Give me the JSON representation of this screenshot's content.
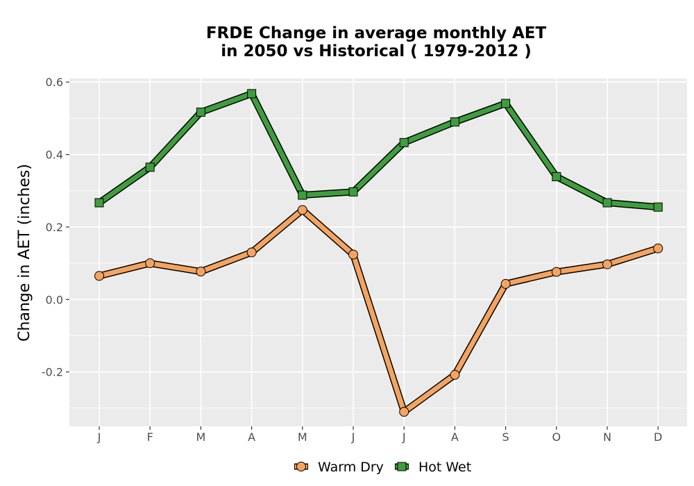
{
  "chart_data": {
    "type": "line",
    "title_line1": "FRDE  Change in average monthly AET",
    "title_line2": "in 2050 vs Historical ( 1979-2012 )",
    "xlabel": "",
    "ylabel": "Change in AET (inches)",
    "categories": [
      "J",
      "F",
      "M",
      "A",
      "M",
      "J",
      "J",
      "A",
      "S",
      "O",
      "N",
      "D"
    ],
    "ylim": [
      -0.35,
      0.61
    ],
    "yticks": [
      -0.2,
      0.0,
      0.2,
      0.4,
      0.6
    ],
    "ytick_labels": [
      "-0.2",
      "0.0",
      "0.2",
      "0.4",
      "0.6"
    ],
    "grid": true,
    "legend_position": "bottom",
    "series": [
      {
        "name": "Warm Dry",
        "marker": "circle",
        "color": "#F4A460",
        "values": [
          0.065,
          0.1,
          0.077,
          0.13,
          0.247,
          0.124,
          -0.31,
          -0.208,
          0.043,
          0.076,
          0.097,
          0.141
        ]
      },
      {
        "name": "Hot Wet",
        "marker": "square",
        "color": "#3E9E3E",
        "values": [
          0.267,
          0.365,
          0.517,
          0.568,
          0.288,
          0.297,
          0.433,
          0.49,
          0.541,
          0.339,
          0.267,
          0.255
        ]
      }
    ]
  }
}
